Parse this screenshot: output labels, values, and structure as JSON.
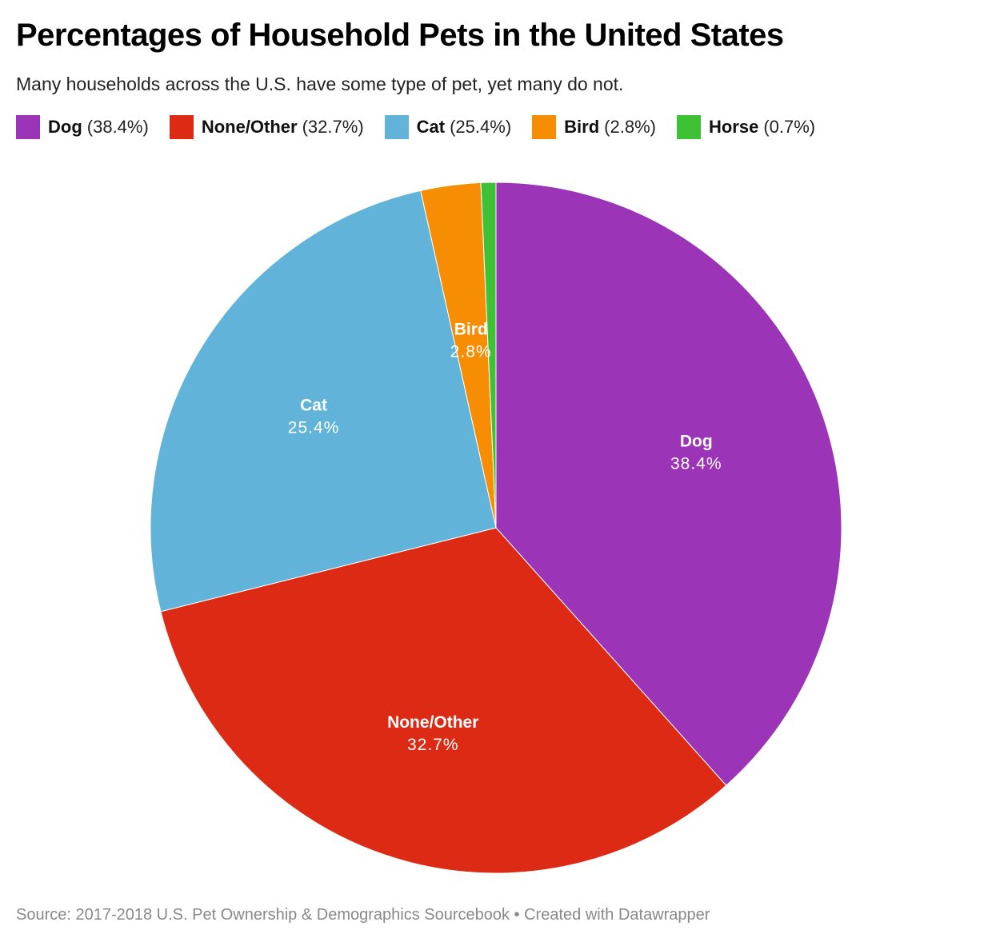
{
  "title": "Percentages of Household Pets in the United States",
  "subtitle": "Many households across the U.S. have some type of pet, yet many do not.",
  "footer": "Source: 2017-2018 U.S. Pet Ownership & Demographics Sourcebook • Created with Datawrapper",
  "chart_data": {
    "type": "pie",
    "title": "Percentages of Household Pets in the United States",
    "subtitle": "Many households across the U.S. have some type of pet, yet many do not.",
    "unit": "%",
    "legend_position": "top-left",
    "categories": [
      "Dog",
      "None/Other",
      "Cat",
      "Bird",
      "Horse"
    ],
    "values": [
      38.4,
      32.7,
      25.4,
      2.8,
      0.7
    ],
    "value_labels": [
      "38.4%",
      "32.7%",
      "25.4%",
      "2.8%",
      "0.7%"
    ],
    "legend_labels": [
      "(38.4%)",
      "(32.7%)",
      "(25.4%)",
      "(2.8%)",
      "(0.7%)"
    ],
    "slice_labels_shown": [
      true,
      true,
      true,
      true,
      false
    ],
    "colors": [
      "#9b34b7",
      "#dd2a14",
      "#62b3d9",
      "#f78d03",
      "#3fc135"
    ]
  }
}
